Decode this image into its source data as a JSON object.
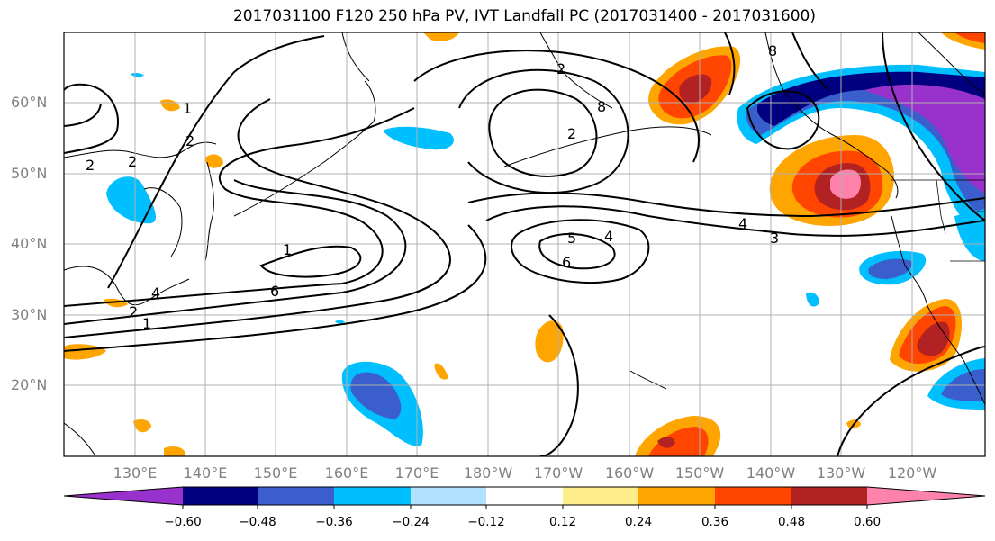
{
  "title": "2017031100 F120 250 hPa PV, IVT Landfall PC (2017031400 - 2017031600)",
  "lat_labels": [
    "60°N",
    "50°N",
    "40°N",
    "30°N",
    "20°N"
  ],
  "lon_labels": [
    "130°E",
    "140°E",
    "150°E",
    "160°E",
    "170°E",
    "180°W",
    "170°W",
    "160°W",
    "150°W",
    "140°W",
    "130°W",
    "120°W"
  ],
  "colorbar": {
    "ticks": [
      "−0.60",
      "−0.48",
      "−0.36",
      "−0.24",
      "−0.12",
      "0.12",
      "0.24",
      "0.36",
      "0.48",
      "0.60"
    ],
    "colors": [
      "#9932cc",
      "#000080",
      "#3a5fcd",
      "#00bfff",
      "#b0e2ff",
      "#ffffff",
      "#ffec8b",
      "#ffa500",
      "#ff4500",
      "#b22222",
      "#ff82ab"
    ]
  },
  "contour_labels": [
    "2",
    "2",
    "2",
    "1",
    "4",
    "2",
    "1",
    "6",
    "1",
    "5",
    "4",
    "6",
    "4",
    "3",
    "2",
    "8",
    "8",
    "2"
  ]
}
